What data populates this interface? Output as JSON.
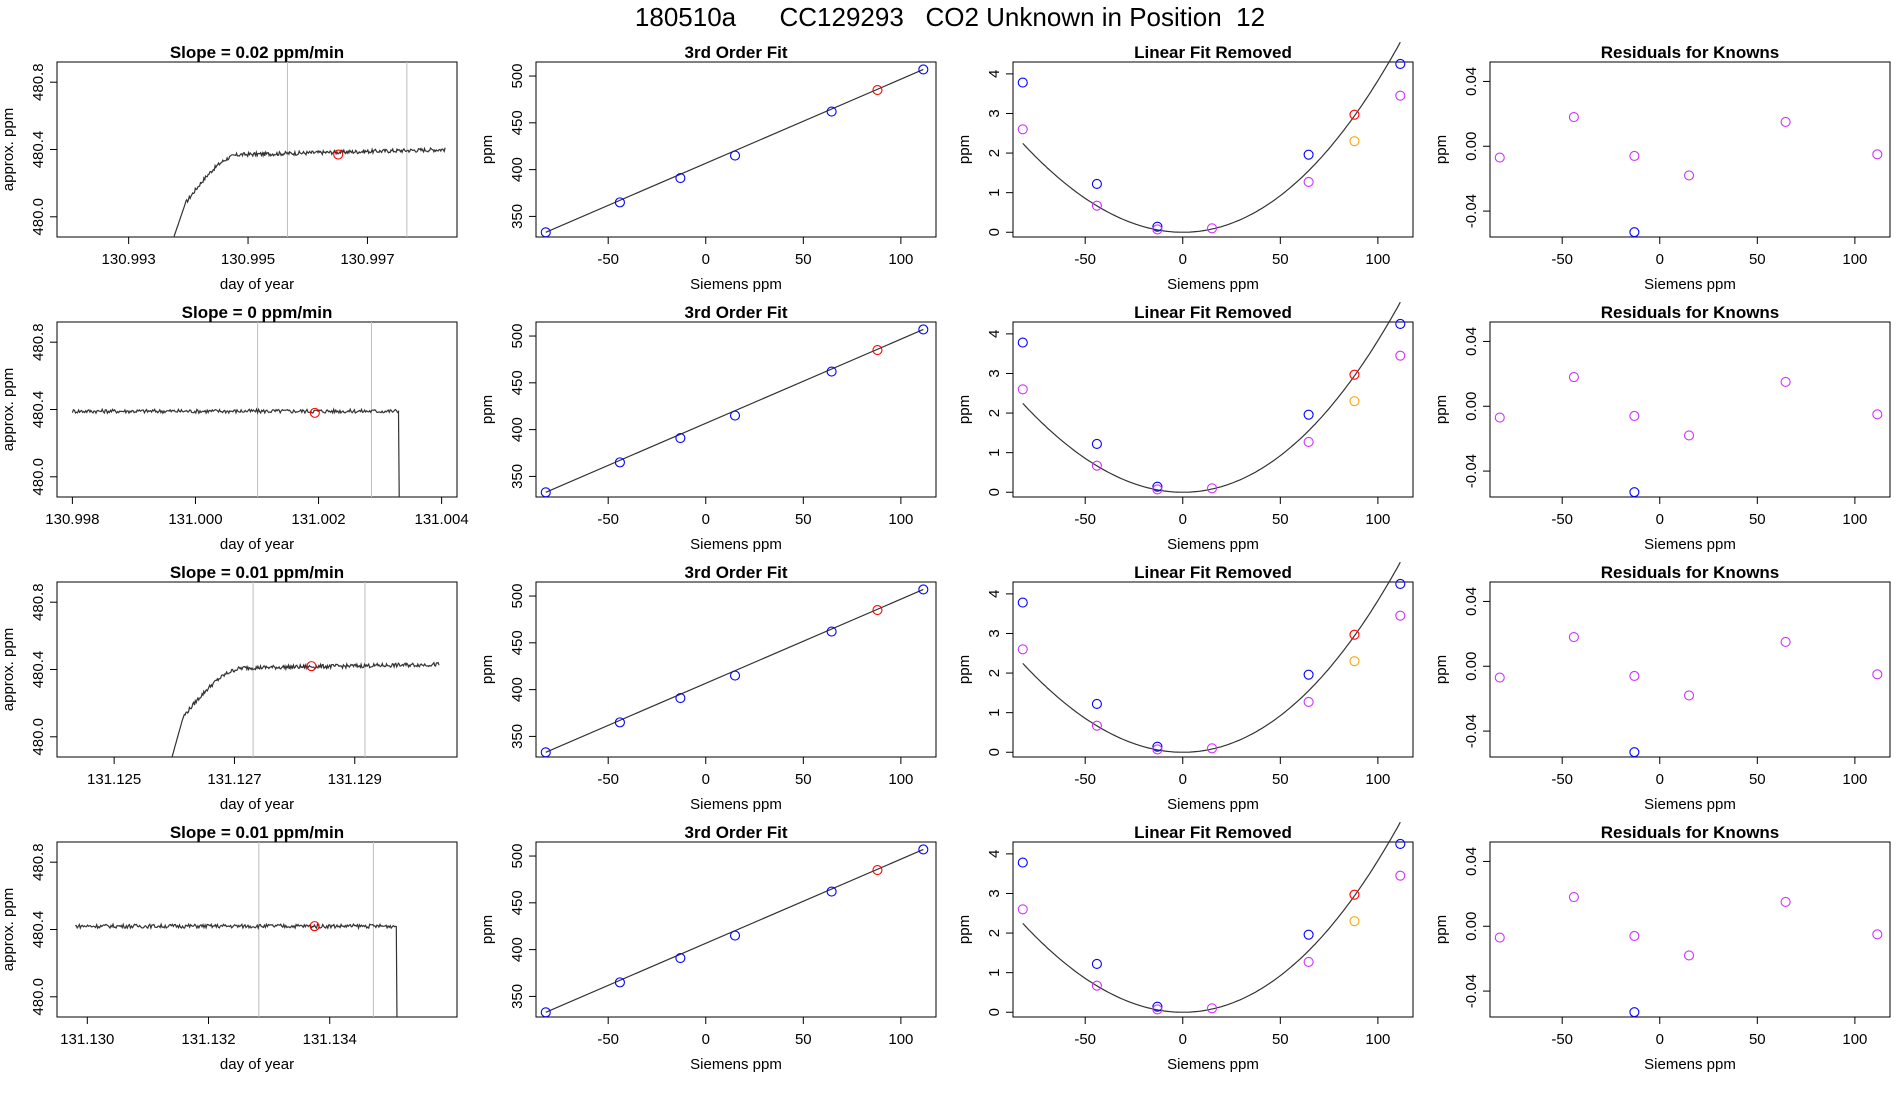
{
  "page": {
    "title": "180510a      CC129293   CO2 Unknown in Position  12"
  },
  "colors": {
    "line": "#333333",
    "blue": "#0000ff",
    "red": "#ff0000",
    "magenta": "#cc33ff",
    "orange": "#ffa500",
    "vline": "#bebebe"
  },
  "labels": {
    "x_siemens": "Siemens ppm",
    "y_ppm": "ppm",
    "x_day": "day of year",
    "y_approx": "approx. ppm",
    "title_fit": "3rd Order Fit",
    "title_lin": "Linear Fit Removed",
    "title_res": "Residuals for Knowns"
  },
  "chart_data": [
    {
      "row": 1,
      "type": "line",
      "title": "Slope =  0.02  ppm/min",
      "xlabel": "day of year",
      "ylabel": "approx. ppm",
      "xticks": [
        "130.993",
        "130.995",
        "130.997"
      ],
      "xtick_values": [
        130.993,
        130.995,
        130.997
      ],
      "yticks": [
        "480.0",
        "480.4",
        "480.8"
      ],
      "ytick_values": [
        480.0,
        480.4,
        480.8
      ],
      "xlim": [
        130.9918,
        130.9985
      ],
      "ylim": [
        479.88,
        480.92
      ],
      "vlines": [
        130.99566,
        130.99766
      ],
      "point": {
        "x": 130.99651,
        "y": 480.37
      },
      "trace": {
        "x_start": 130.9937,
        "x_end": 130.9983,
        "x_break": 130.99395,
        "x_settle": 130.9949,
        "y_start": 479.82,
        "y_mid": 480.08,
        "y_plateau": 480.37,
        "y_end": 480.4,
        "noise": 0.012
      }
    },
    {
      "row": 2,
      "type": "line",
      "title": "Slope =  0  ppm/min",
      "xlabel": "day of year",
      "ylabel": "approx. ppm",
      "xticks": [
        "130.998",
        "131.000",
        "131.002",
        "131.004"
      ],
      "xtick_values": [
        130.998,
        131.0,
        131.002,
        131.004
      ],
      "yticks": [
        "480.0",
        "480.4",
        "480.8"
      ],
      "ytick_values": [
        480.0,
        480.4,
        480.8
      ],
      "xlim": [
        130.99775,
        131.00425
      ],
      "ylim": [
        479.88,
        480.92
      ],
      "vlines": [
        131.00101,
        131.00286
      ],
      "point": {
        "x": 131.00194,
        "y": 480.38
      },
      "trace": {
        "x_start": 130.998,
        "x_end": 131.00335,
        "x_drop": 131.0033,
        "y_level": 480.39,
        "y_drop_to": 479.6,
        "noise": 0.012
      }
    },
    {
      "row": 3,
      "type": "line",
      "title": "Slope =  0.01  ppm/min",
      "xlabel": "day of year",
      "ylabel": "approx. ppm",
      "xticks": [
        "131.125",
        "131.127",
        "131.129"
      ],
      "xtick_values": [
        131.125,
        131.127,
        131.129
      ],
      "yticks": [
        "480.0",
        "480.4",
        "480.8"
      ],
      "ytick_values": [
        480.0,
        480.4,
        480.8
      ],
      "xlim": [
        131.12405,
        131.1307
      ],
      "ylim": [
        479.88,
        480.92
      ],
      "vlines": [
        131.12731,
        131.12917
      ],
      "point": {
        "x": 131.12828,
        "y": 480.42
      },
      "trace": {
        "x_start": 131.1259,
        "x_end": 131.1304,
        "x_break": 131.12615,
        "x_settle": 131.1272,
        "y_start": 479.8,
        "y_mid": 480.12,
        "y_plateau": 480.41,
        "y_end": 480.43,
        "noise": 0.012
      }
    },
    {
      "row": 4,
      "type": "line",
      "title": "Slope =  0.01  ppm/min",
      "xlabel": "day of year",
      "ylabel": "approx. ppm",
      "xticks": [
        "131.130",
        "131.132",
        "131.134"
      ],
      "xtick_values": [
        131.13,
        131.132,
        131.134
      ],
      "yticks": [
        "480.0",
        "480.4",
        "480.8"
      ],
      "ytick_values": [
        480.0,
        480.4,
        480.8
      ],
      "xlim": [
        131.1295,
        131.1361
      ],
      "ylim": [
        479.88,
        480.92
      ],
      "vlines": [
        131.13283,
        131.13472
      ],
      "point": {
        "x": 131.13375,
        "y": 480.42
      },
      "trace": {
        "x_start": 131.1298,
        "x_end": 131.1352,
        "x_drop": 131.1351,
        "y_level": 480.42,
        "y_drop_to": 479.6,
        "noise": 0.012
      }
    },
    {
      "type": "scatter",
      "role": "fit",
      "title": "3rd Order Fit",
      "xlabel": "Siemens ppm",
      "ylabel": "ppm",
      "xlim": [
        -87,
        118
      ],
      "ylim": [
        328,
        515
      ],
      "xticks": [
        "-50",
        "0",
        "50",
        "100"
      ],
      "xtick_values": [
        -50,
        0,
        50,
        100
      ],
      "yticks": [
        "350",
        "400",
        "450",
        "500"
      ],
      "ytick_values": [
        350,
        400,
        450,
        500
      ],
      "fit": {
        "x1": -82,
        "x2": 111.5,
        "y1": 333,
        "y2": 507
      },
      "points": [
        {
          "x": -82,
          "y": 333,
          "color": "blue"
        },
        {
          "x": -44,
          "y": 365,
          "color": "blue"
        },
        {
          "x": -13,
          "y": 391,
          "color": "blue"
        },
        {
          "x": 15,
          "y": 415,
          "color": "blue"
        },
        {
          "x": 64.5,
          "y": 462,
          "color": "blue"
        },
        {
          "x": 88,
          "y": 485,
          "color": "red"
        },
        {
          "x": 111.5,
          "y": 507,
          "color": "blue"
        }
      ]
    },
    {
      "type": "scatter",
      "role": "linear_removed",
      "title": "Linear Fit Removed",
      "xlabel": "Siemens ppm",
      "ylabel": "ppm",
      "xlim": [
        -87,
        118
      ],
      "ylim": [
        -0.12,
        4.3
      ],
      "xticks": [
        "-50",
        "0",
        "50",
        "100"
      ],
      "xtick_values": [
        -50,
        0,
        50,
        100
      ],
      "yticks": [
        "0",
        "1",
        "2",
        "3",
        "4"
      ],
      "ytick_values": [
        0,
        1,
        2,
        3,
        4
      ],
      "curve": {
        "x_from": -82,
        "x_to": 111.5,
        "x_min": 0,
        "a": 0.000356,
        "b": 6e-05
      },
      "points": [
        {
          "x": -82,
          "y": 3.78,
          "color": "blue"
        },
        {
          "x": -44,
          "y": 1.22,
          "color": "blue"
        },
        {
          "x": -13,
          "y": 0.14,
          "color": "blue"
        },
        {
          "x": 15,
          "y": 0.1,
          "color": "magenta"
        },
        {
          "x": 64.5,
          "y": 1.96,
          "color": "blue"
        },
        {
          "x": 88,
          "y": 2.97,
          "color": "red"
        },
        {
          "x": 111.5,
          "y": 4.25,
          "color": "blue"
        },
        {
          "x": -82,
          "y": 2.6,
          "color": "magenta"
        },
        {
          "x": -44,
          "y": 0.67,
          "color": "magenta"
        },
        {
          "x": -13,
          "y": 0.07,
          "color": "magenta"
        },
        {
          "x": 64.5,
          "y": 1.27,
          "color": "magenta"
        },
        {
          "x": 88,
          "y": 2.3,
          "color": "orange"
        },
        {
          "x": 111.5,
          "y": 3.45,
          "color": "magenta"
        }
      ]
    },
    {
      "type": "scatter",
      "role": "residuals",
      "title": "Residuals for Knowns",
      "xlabel": "Siemens ppm",
      "ylabel": "ppm",
      "xlim": [
        -87,
        118
      ],
      "ylim": [
        -0.056,
        0.052
      ],
      "xticks": [
        "-50",
        "0",
        "50",
        "100"
      ],
      "xtick_values": [
        -50,
        0,
        50,
        100
      ],
      "yticks": [
        "-0.04",
        "0.00",
        "0.04"
      ],
      "ytick_values": [
        -0.04,
        0.0,
        0.04
      ],
      "points": [
        {
          "x": -82,
          "y": -0.007,
          "color": "magenta"
        },
        {
          "x": -44,
          "y": 0.018,
          "color": "magenta"
        },
        {
          "x": -13,
          "y": -0.006,
          "color": "magenta"
        },
        {
          "x": -13,
          "y": -0.053,
          "color": "blue"
        },
        {
          "x": 15,
          "y": -0.018,
          "color": "magenta"
        },
        {
          "x": 64.5,
          "y": 0.015,
          "color": "magenta"
        },
        {
          "x": 111.5,
          "y": -0.005,
          "color": "magenta"
        }
      ]
    }
  ]
}
